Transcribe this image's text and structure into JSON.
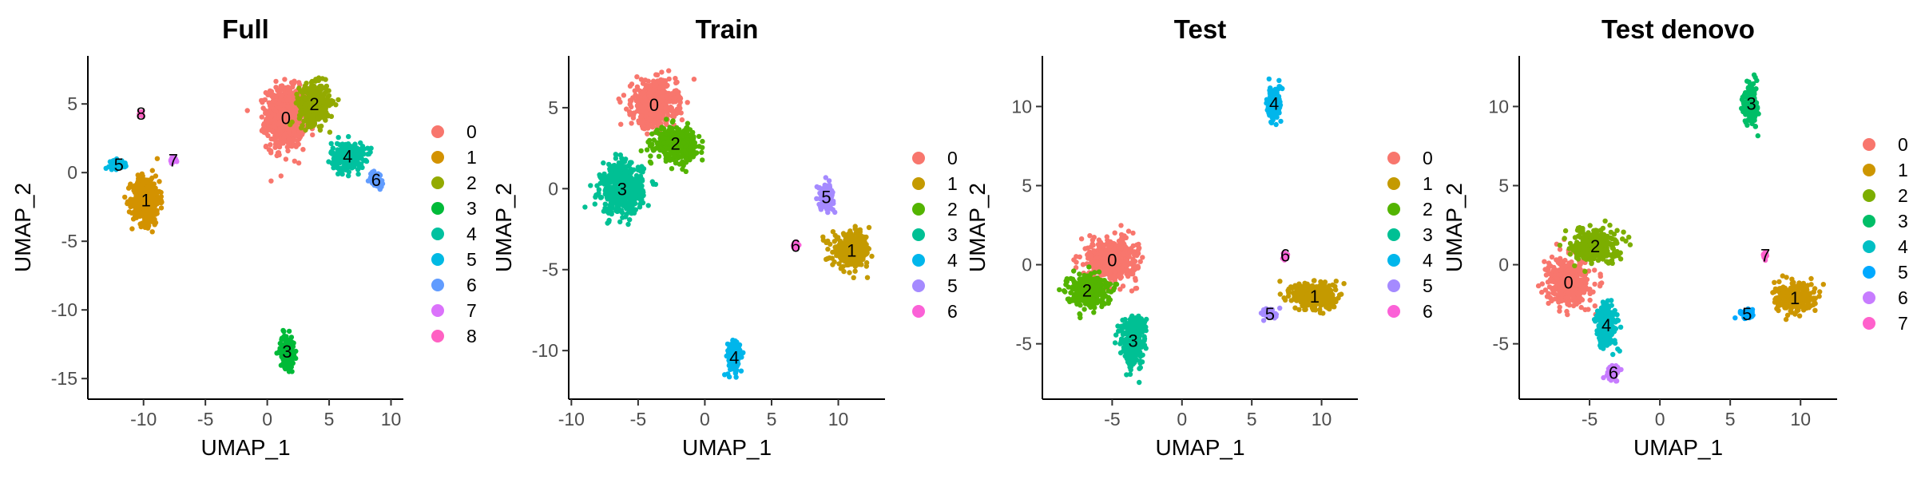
{
  "chart_data": [
    {
      "type": "scatter",
      "title": "Full",
      "xlabel": "UMAP_1",
      "ylabel": "UMAP_2",
      "xlim": [
        -14.5,
        11
      ],
      "ylim": [
        -16.5,
        8.5
      ],
      "xticks": [
        "-10",
        "-5",
        "0",
        "5",
        "10"
      ],
      "yticks": [
        "5",
        "0",
        "-5",
        "-10",
        "-15"
      ],
      "legend": [
        "0",
        "1",
        "2",
        "3",
        "4",
        "5",
        "6",
        "7",
        "8"
      ],
      "clusters": [
        {
          "label": "0",
          "x": 1.5,
          "y": 4.0,
          "sx": 1.4,
          "sy": 2.0
        },
        {
          "label": "1",
          "x": -9.8,
          "y": -2.0,
          "sx": 1.0,
          "sy": 1.6
        },
        {
          "label": "2",
          "x": 3.8,
          "y": 5.0,
          "sx": 1.1,
          "sy": 1.3
        },
        {
          "label": "3",
          "x": 1.6,
          "y": -13.0,
          "sx": 0.5,
          "sy": 1.1
        },
        {
          "label": "4",
          "x": 6.5,
          "y": 1.2,
          "sx": 1.2,
          "sy": 0.9
        },
        {
          "label": "5",
          "x": -12.0,
          "y": 0.6,
          "sx": 0.7,
          "sy": 0.3
        },
        {
          "label": "6",
          "x": 8.8,
          "y": -0.5,
          "sx": 0.5,
          "sy": 0.5
        },
        {
          "label": "7",
          "x": -7.6,
          "y": 0.9,
          "sx": 0.2,
          "sy": 0.2
        },
        {
          "label": "8",
          "x": -10.2,
          "y": 4.3,
          "sx": 0.15,
          "sy": 0.15
        }
      ]
    },
    {
      "type": "scatter",
      "title": "Train",
      "xlabel": "UMAP_1",
      "ylabel": "UMAP_2",
      "xlim": [
        -10.2,
        13.5
      ],
      "ylim": [
        -13,
        8.2
      ],
      "xticks": [
        "-10",
        "-5",
        "0",
        "5",
        "10"
      ],
      "yticks": [
        "5",
        "0",
        "-5",
        "-10"
      ],
      "legend": [
        "0",
        "1",
        "2",
        "3",
        "4",
        "5",
        "6"
      ],
      "clusters": [
        {
          "label": "0",
          "x": -3.8,
          "y": 5.2,
          "sx": 1.5,
          "sy": 1.3
        },
        {
          "label": "1",
          "x": 11.0,
          "y": -3.8,
          "sx": 1.3,
          "sy": 0.9
        },
        {
          "label": "2",
          "x": -2.2,
          "y": 2.8,
          "sx": 1.4,
          "sy": 0.9
        },
        {
          "label": "3",
          "x": -6.2,
          "y": 0.0,
          "sx": 1.4,
          "sy": 1.4
        },
        {
          "label": "4",
          "x": 2.2,
          "y": -10.4,
          "sx": 0.5,
          "sy": 1.0
        },
        {
          "label": "5",
          "x": 9.1,
          "y": -0.5,
          "sx": 0.5,
          "sy": 0.7
        },
        {
          "label": "6",
          "x": 6.8,
          "y": -3.5,
          "sx": 0.2,
          "sy": 0.15
        }
      ]
    },
    {
      "type": "scatter",
      "title": "Test",
      "xlabel": "UMAP_1",
      "ylabel": "UMAP_2",
      "xlim": [
        -10,
        12.6
      ],
      "ylim": [
        -8.5,
        13.2
      ],
      "xticks": [
        "-5",
        "0",
        "5",
        "10"
      ],
      "yticks": [
        "10",
        "5",
        "0",
        "-5"
      ],
      "legend": [
        "0",
        "1",
        "2",
        "3",
        "4",
        "5",
        "6"
      ],
      "clusters": [
        {
          "label": "0",
          "x": -5.0,
          "y": 0.3,
          "sx": 1.6,
          "sy": 1.2
        },
        {
          "label": "1",
          "x": 9.5,
          "y": -2.0,
          "sx": 1.4,
          "sy": 0.8
        },
        {
          "label": "2",
          "x": -6.8,
          "y": -1.6,
          "sx": 1.3,
          "sy": 0.9
        },
        {
          "label": "3",
          "x": -3.5,
          "y": -4.8,
          "sx": 0.8,
          "sy": 1.4
        },
        {
          "label": "4",
          "x": 6.6,
          "y": 10.2,
          "sx": 0.45,
          "sy": 1.1
        },
        {
          "label": "5",
          "x": 6.3,
          "y": -3.1,
          "sx": 0.55,
          "sy": 0.3
        },
        {
          "label": "6",
          "x": 7.4,
          "y": 0.6,
          "sx": 0.15,
          "sy": 0.2
        }
      ]
    },
    {
      "type": "scatter",
      "title": "Test denovo",
      "xlabel": "UMAP_1",
      "ylabel": "UMAP_2",
      "xlim": [
        -10,
        12.6
      ],
      "ylim": [
        -8.5,
        13.2
      ],
      "xticks": [
        "-5",
        "0",
        "5",
        "10"
      ],
      "yticks": [
        "10",
        "5",
        "0",
        "-5"
      ],
      "legend": [
        "0",
        "1",
        "2",
        "3",
        "4",
        "5",
        "6",
        "7"
      ],
      "clusters": [
        {
          "label": "0",
          "x": -6.5,
          "y": -1.1,
          "sx": 1.3,
          "sy": 1.3
        },
        {
          "label": "1",
          "x": 9.6,
          "y": -2.1,
          "sx": 1.3,
          "sy": 0.8
        },
        {
          "label": "2",
          "x": -4.6,
          "y": 1.2,
          "sx": 1.4,
          "sy": 0.9
        },
        {
          "label": "3",
          "x": 6.5,
          "y": 10.2,
          "sx": 0.45,
          "sy": 1.2
        },
        {
          "label": "4",
          "x": -3.8,
          "y": -3.8,
          "sx": 0.7,
          "sy": 1.2
        },
        {
          "label": "5",
          "x": 6.2,
          "y": -3.1,
          "sx": 0.5,
          "sy": 0.3
        },
        {
          "label": "6",
          "x": -3.3,
          "y": -6.8,
          "sx": 0.4,
          "sy": 0.4
        },
        {
          "label": "7",
          "x": 7.5,
          "y": 0.6,
          "sx": 0.15,
          "sy": 0.2
        }
      ]
    }
  ]
}
